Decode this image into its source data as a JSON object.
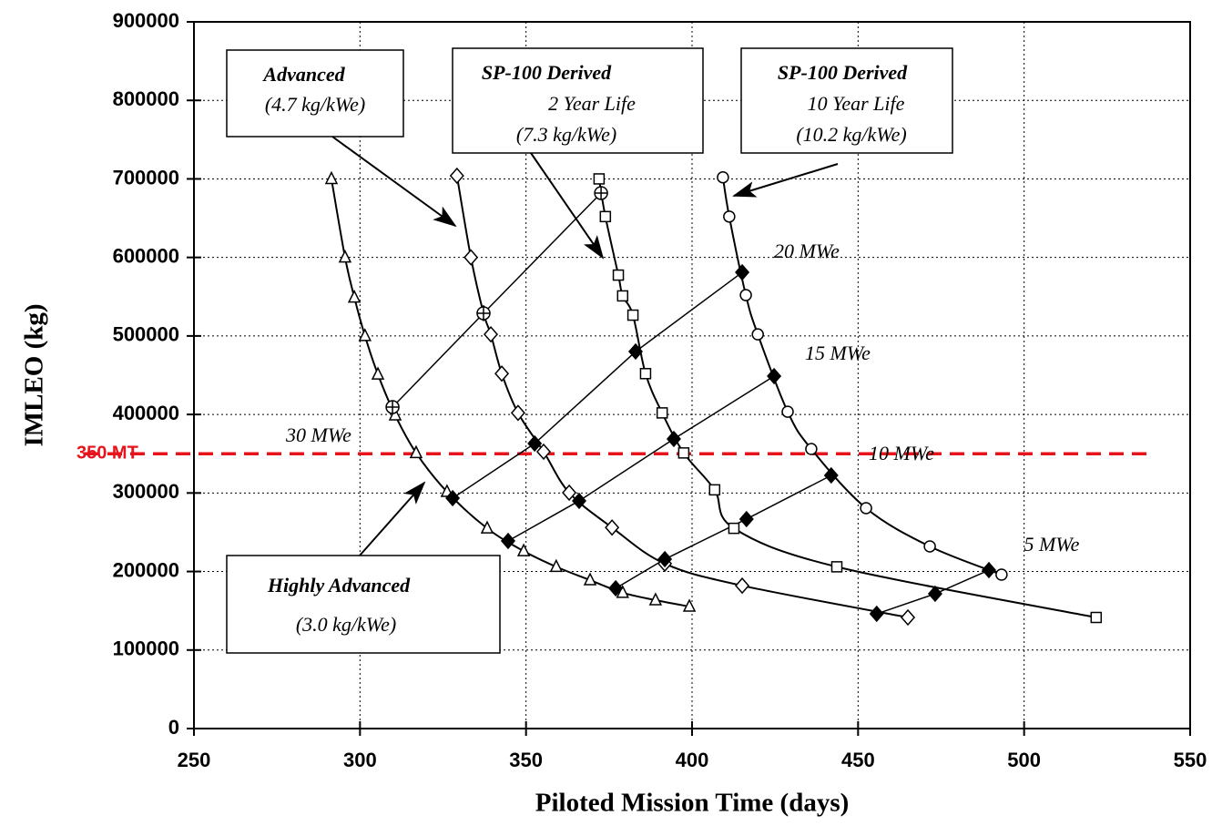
{
  "chart_data": {
    "type": "line",
    "x_label": "Piloted Mission Time (days)",
    "y_label": "IMLEO (kg)",
    "xlim": [
      250,
      550
    ],
    "ylim": [
      0,
      900000
    ],
    "xticks": [
      250,
      300,
      350,
      400,
      450,
      500,
      550
    ],
    "yticks": [
      0,
      100000,
      200000,
      300000,
      400000,
      500000,
      600000,
      700000,
      800000,
      900000
    ],
    "grid": true,
    "series": [
      {
        "name": "Highly Advanced",
        "spec": "(3.0 kg/kWe)",
        "marker": "triangle",
        "color": "#000000",
        "x": [
          291.4,
          295.5,
          298.3,
          301.5,
          305.4,
          310.6,
          316.9,
          326.2,
          338.3,
          349.3,
          359.1,
          369.3,
          379.1,
          389.0,
          399.2
        ],
        "values": [
          700000,
          600000,
          549000,
          500000,
          451000,
          399000,
          351000,
          301500,
          255000,
          226000,
          206000,
          189000,
          173000,
          163500,
          155400
        ]
      },
      {
        "name": "Advanced",
        "spec": "(4.7 kg/kWe)",
        "marker": "diamond",
        "color": "#000000",
        "x": [
          329.2,
          333.4,
          337.2,
          339.4,
          342.7,
          347.6,
          355.3,
          363.0,
          375.9,
          391.8,
          415.1,
          465.0
        ],
        "values": [
          704000,
          600000,
          529000,
          502000,
          452000,
          402000,
          352600,
          300400,
          256000,
          210000,
          182000,
          141500
        ]
      },
      {
        "name": "SP-100 Derived",
        "life": "2 Year Life",
        "spec": "(7.3 kg/kWe)",
        "marker": "square",
        "color": "#000000",
        "x": [
          372.0,
          373.9,
          377.8,
          379.1,
          382.2,
          386.0,
          391.0,
          397.5,
          406.8,
          412.6,
          443.6,
          521.7
        ],
        "values": [
          700000,
          652000,
          577500,
          551000,
          526500,
          452000,
          402000,
          351000,
          304000,
          255000,
          206000,
          141500
        ]
      },
      {
        "name": "SP-100 Derived",
        "life": "10 Year Life",
        "spec": "(10.2 kg/kWe)",
        "marker": "circle",
        "color": "#000000",
        "x": [
          409.3,
          411.2,
          416.2,
          419.8,
          428.8,
          435.9,
          452.4,
          471.6,
          493.2
        ],
        "values": [
          702000,
          652000,
          552000,
          502000,
          403500,
          356000,
          280700,
          232000,
          196000
        ]
      }
    ],
    "power_lines": [
      {
        "label": "30 MWe",
        "marker": "circle-cross",
        "x": [
          309.8,
          337.2,
          372.6
        ],
        "values": [
          409400,
          528900,
          682000
        ]
      },
      {
        "label": "20 MWe",
        "marker": "filled",
        "x": [
          327.9,
          352.6,
          383.0,
          415.1
        ],
        "values": [
          293400,
          363000,
          480100,
          581000
        ]
      },
      {
        "label": "15 MWe",
        "marker": "filled",
        "x": [
          344.6,
          366.0,
          394.5,
          424.7
        ],
        "values": [
          238900,
          290000,
          368800,
          448800
        ]
      },
      {
        "label": "10 MWe",
        "marker": "filled",
        "x": [
          377.0,
          391.8,
          416.4,
          441.9
        ],
        "values": [
          178600,
          215700,
          266800,
          322400
        ]
      },
      {
        "label": "5 MWe",
        "marker": "filled",
        "x": [
          455.6,
          473.2,
          489.4
        ],
        "values": [
          146100,
          171600,
          201800
        ]
      }
    ],
    "reference_line": {
      "value": 350000,
      "label": "350 MT",
      "color": "#e8141c"
    }
  }
}
